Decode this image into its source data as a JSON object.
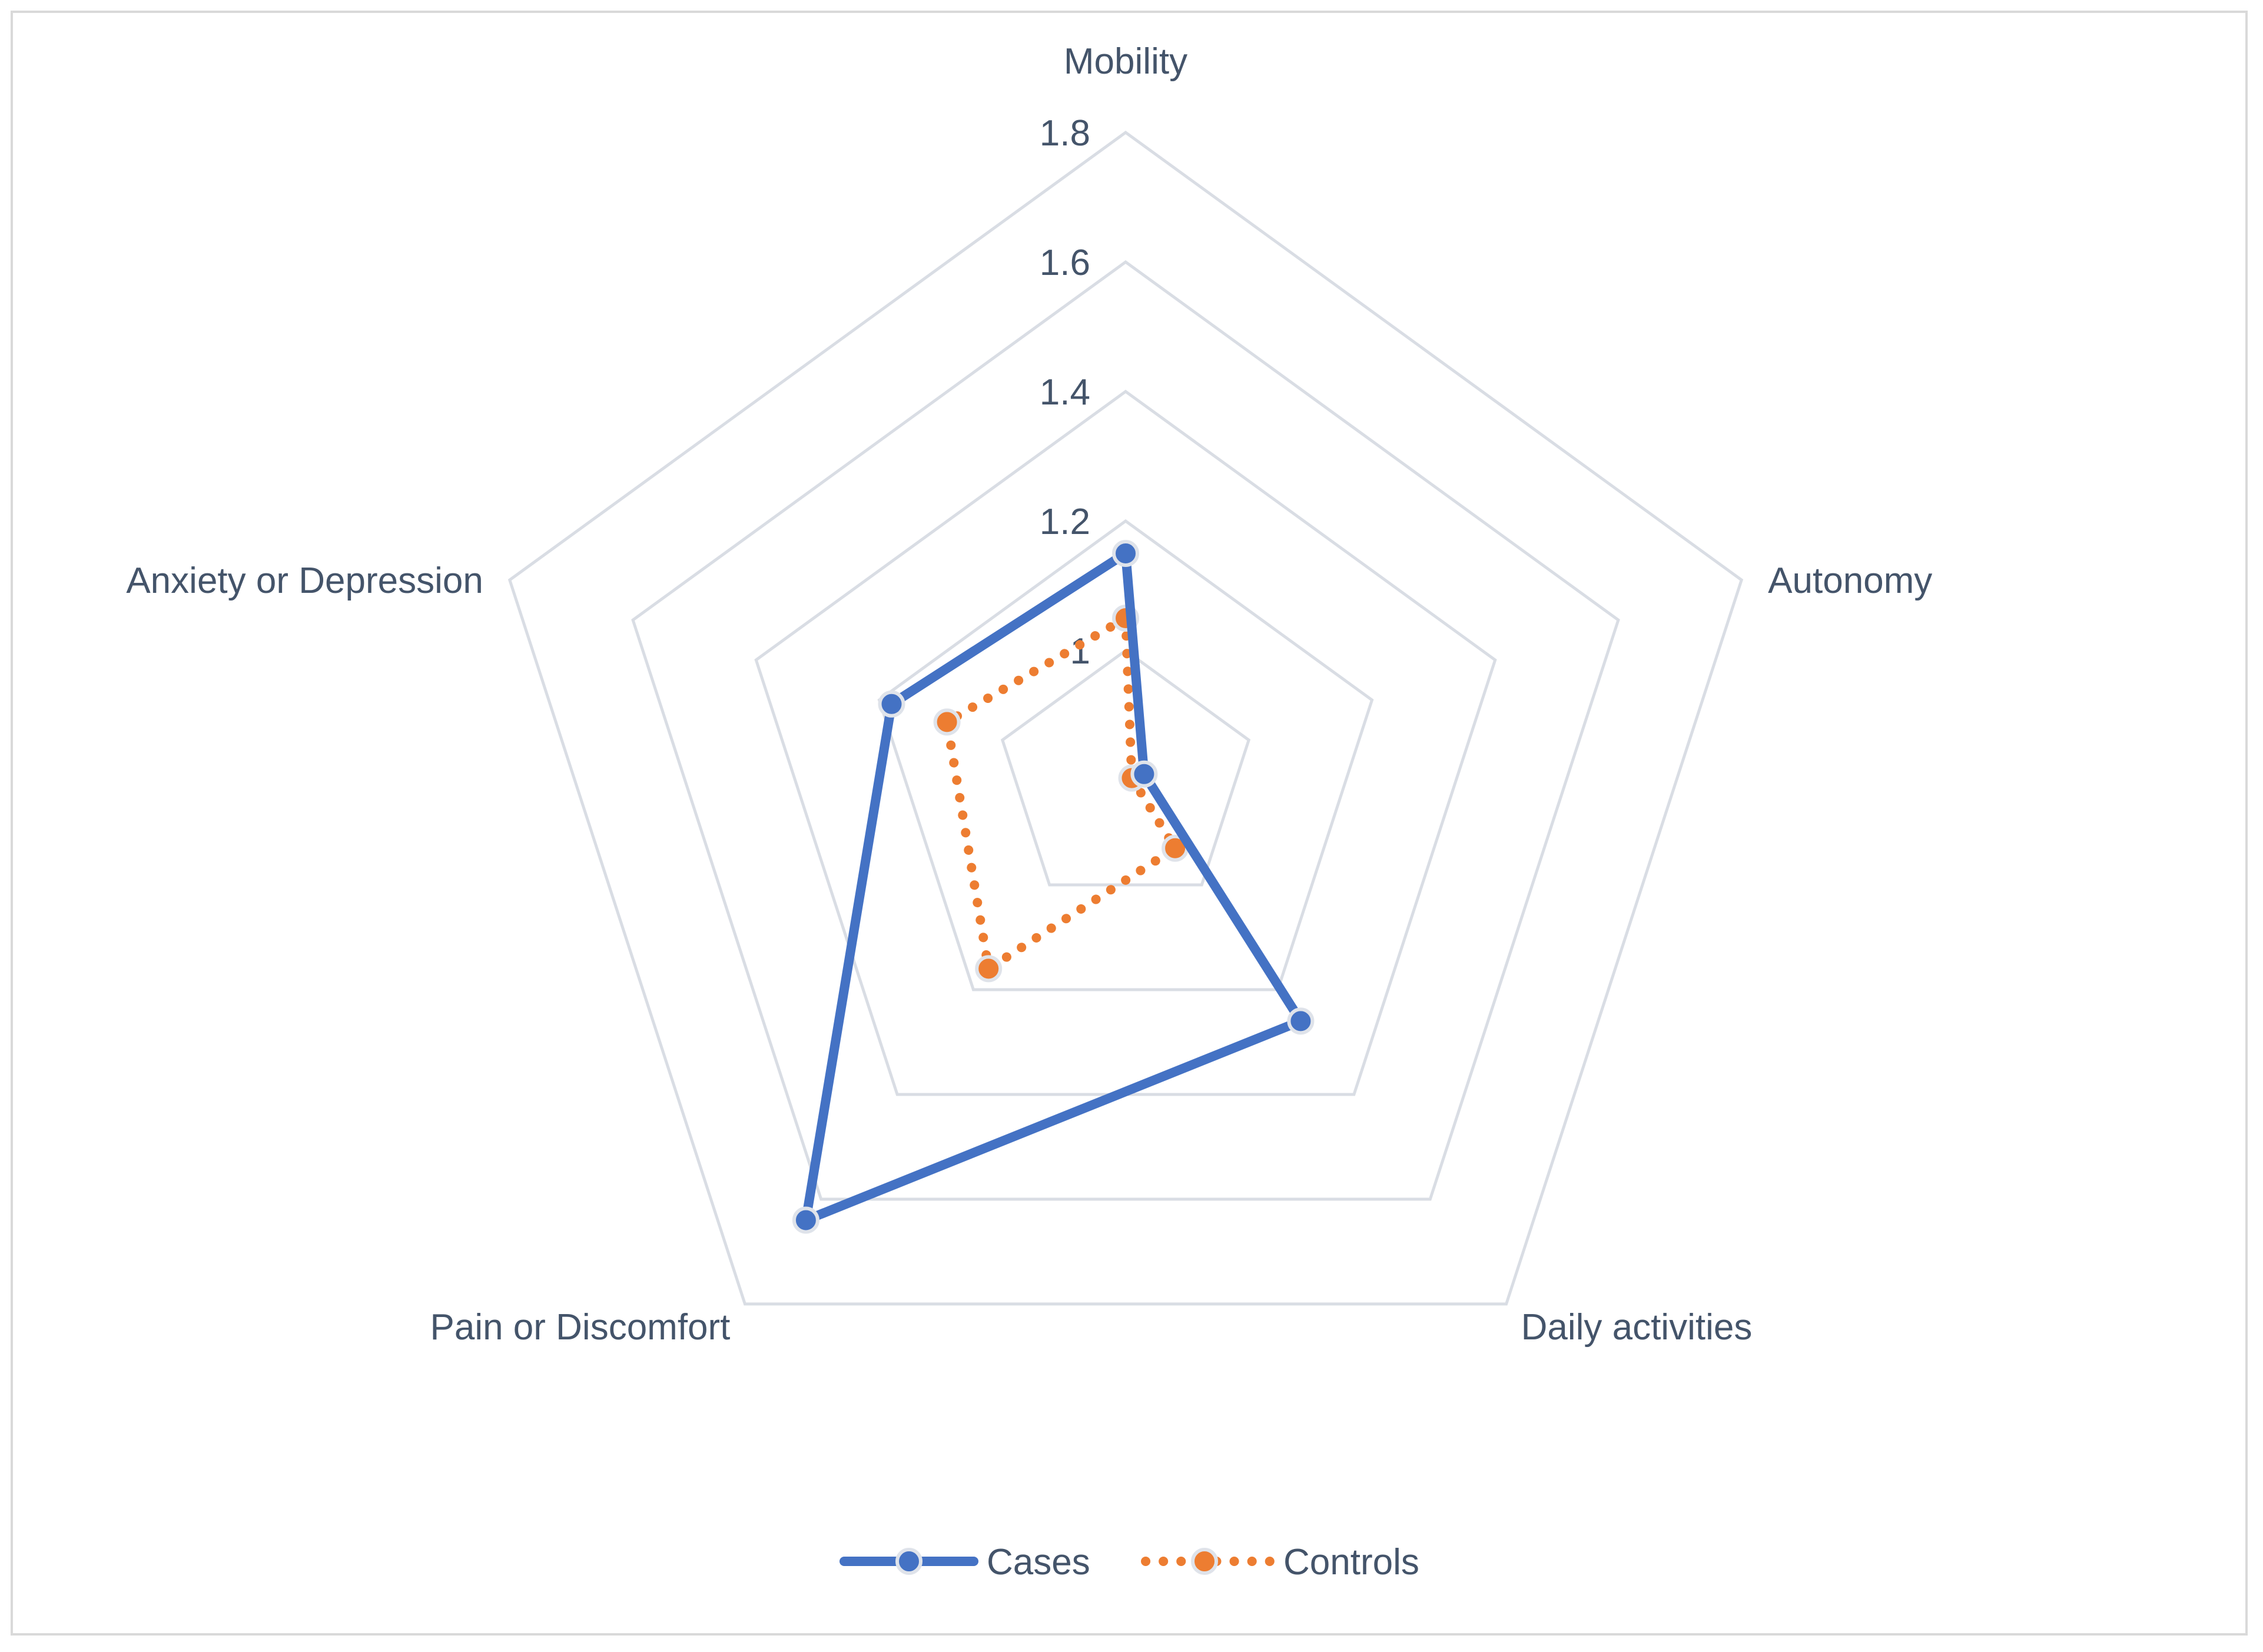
{
  "chart_data": {
    "type": "radar",
    "title": "",
    "categories": [
      "Mobility",
      "Autonomy",
      "Daily activities",
      "Pain or Discomfort",
      "Anxiety or Depression"
    ],
    "r_range": [
      0.8,
      1.8
    ],
    "r_ticks": [
      0.8,
      1.0,
      1.2,
      1.4,
      1.6,
      1.8
    ],
    "r_tick_labels": [
      "",
      "1",
      "1.2",
      "1.4",
      "1.6",
      "1.8"
    ],
    "grid": true,
    "legend_position": "bottom",
    "series": [
      {
        "name": "Cases",
        "values": [
          1.15,
          0.83,
          1.26,
          1.64,
          1.18
        ],
        "color": "#4472c4",
        "line_style": "solid"
      },
      {
        "name": "Controls",
        "values": [
          1.05,
          0.81,
          0.93,
          1.16,
          1.09
        ],
        "color": "#ed7d31",
        "line_style": "dotted"
      }
    ],
    "colors": {
      "grid": "#d9dde4",
      "text": "#44546a"
    }
  }
}
